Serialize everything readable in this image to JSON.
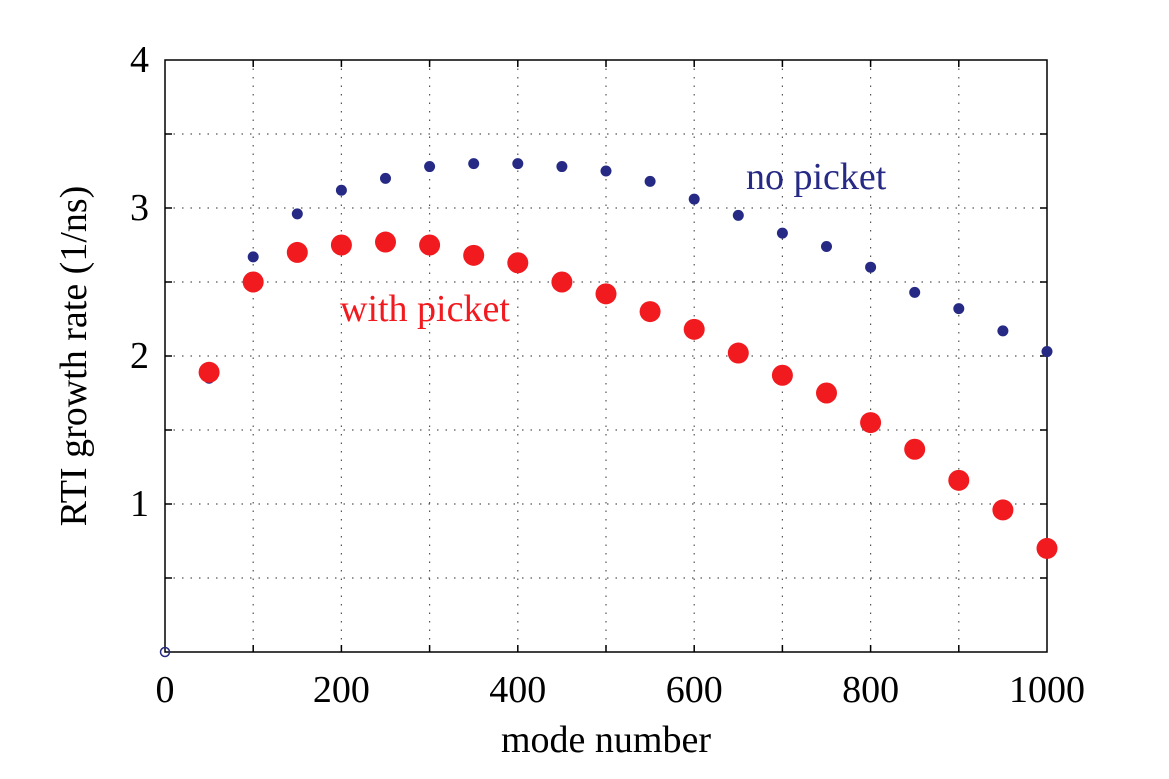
{
  "chart_data": {
    "type": "scatter",
    "xlabel": "mode number",
    "ylabel": "RTI growth rate (1/ns)",
    "xlim": [
      0,
      1000
    ],
    "ylim": [
      0,
      4
    ],
    "x_ticks": [
      "0",
      "200",
      "400",
      "600",
      "800",
      "1000"
    ],
    "y_ticks": [
      "1",
      "2",
      "3",
      "4"
    ],
    "grid": true,
    "annotations": [
      {
        "text": "no picket",
        "series": "no picket"
      },
      {
        "text": "with picket",
        "series": "with picket"
      }
    ],
    "series": [
      {
        "name": "no picket",
        "color": "#262a84",
        "marker": "small-dot",
        "x": [
          0,
          50,
          100,
          150,
          200,
          250,
          300,
          350,
          400,
          450,
          500,
          550,
          600,
          650,
          700,
          750,
          800,
          850,
          900,
          950,
          1000
        ],
        "y": [
          0,
          1.85,
          2.67,
          2.96,
          3.12,
          3.2,
          3.28,
          3.3,
          3.3,
          3.28,
          3.25,
          3.18,
          3.06,
          2.95,
          2.83,
          2.74,
          2.6,
          2.43,
          2.32,
          2.17,
          2.03
        ]
      },
      {
        "name": "with picket",
        "color": "#f01a1f",
        "marker": "large-dot",
        "x": [
          50,
          100,
          150,
          200,
          250,
          300,
          350,
          400,
          450,
          500,
          550,
          600,
          650,
          700,
          750,
          800,
          850,
          900,
          950,
          1000
        ],
        "y": [
          1.89,
          2.5,
          2.7,
          2.75,
          2.77,
          2.75,
          2.68,
          2.63,
          2.5,
          2.42,
          2.3,
          2.18,
          2.02,
          1.87,
          1.75,
          1.55,
          1.37,
          1.16,
          0.96,
          0.7
        ]
      }
    ]
  }
}
